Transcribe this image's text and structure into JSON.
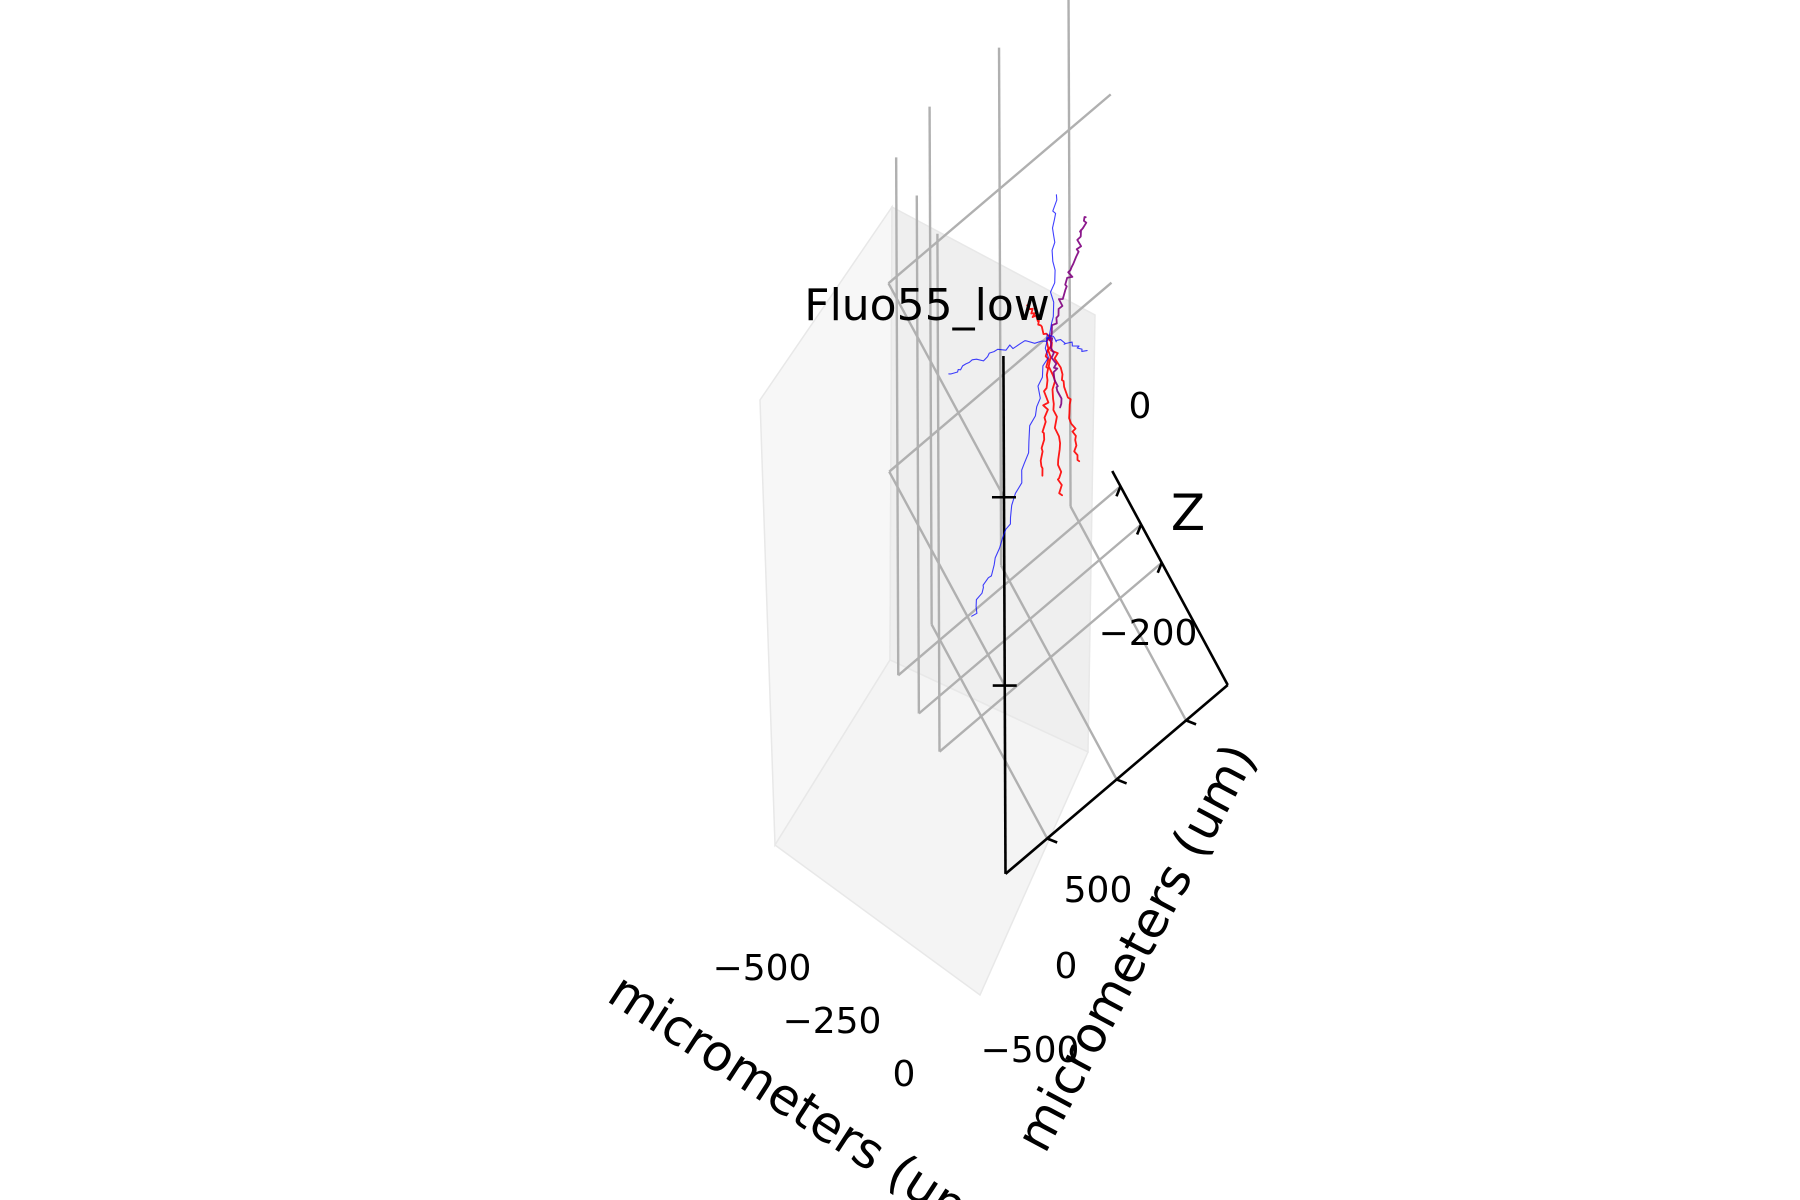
{
  "chart_data": {
    "type": "line3d",
    "title": "Fluo55_low",
    "xlabel": "micrometers (um)",
    "ylabel": "micrometers (um)",
    "zlabel": "Z",
    "x_ticks": [
      "−500",
      "−250",
      "0"
    ],
    "y_ticks": [
      "500",
      "0",
      "−500"
    ],
    "z_ticks": [
      "0",
      "−200"
    ],
    "grid": true,
    "colors": {
      "dendrite": "#ff0000",
      "axon": "#0000ff",
      "apical": "#800080"
    },
    "series": [
      {
        "color": "#ff0000",
        "points": [
          [
            0,
            0,
            -60
          ],
          [
            -20,
            10,
            -110
          ],
          [
            -30,
            20,
            -160
          ],
          [
            -40,
            30,
            -210
          ]
        ]
      },
      {
        "color": "#ff0000",
        "points": [
          [
            0,
            0,
            -60
          ],
          [
            30,
            -10,
            -120
          ],
          [
            60,
            -30,
            -180
          ],
          [
            80,
            -40,
            -220
          ]
        ]
      },
      {
        "color": "#ff0000",
        "points": [
          [
            0,
            0,
            -60
          ],
          [
            60,
            -80,
            -110
          ],
          [
            90,
            -120,
            -160
          ],
          [
            120,
            -140,
            -190
          ]
        ]
      },
      {
        "color": "#ff0000",
        "points": [
          [
            0,
            0,
            -60
          ],
          [
            -60,
            60,
            -40
          ],
          [
            -100,
            100,
            -30
          ]
        ]
      },
      {
        "color": "#800080",
        "points": [
          [
            0,
            0,
            -60
          ],
          [
            50,
            -60,
            -20
          ],
          [
            80,
            -120,
            10
          ],
          [
            100,
            -170,
            40
          ],
          [
            110,
            -200,
            60
          ]
        ]
      },
      {
        "color": "#800080",
        "points": [
          [
            0,
            0,
            -60
          ],
          [
            40,
            -20,
            -90
          ],
          [
            60,
            -40,
            -130
          ]
        ]
      },
      {
        "color": "#0000ff",
        "points": [
          [
            0,
            0,
            -60
          ],
          [
            -80,
            60,
            -150
          ],
          [
            -180,
            150,
            -250
          ],
          [
            -300,
            250,
            -330
          ],
          [
            -400,
            330,
            -380
          ]
        ]
      },
      {
        "color": "#0000ff",
        "points": [
          [
            0,
            0,
            -60
          ],
          [
            -150,
            200,
            -70
          ],
          [
            -300,
            360,
            -90
          ],
          [
            -430,
            470,
            -110
          ]
        ]
      },
      {
        "color": "#0000ff",
        "points": [
          [
            0,
            0,
            -60
          ],
          [
            60,
            -100,
            -70
          ],
          [
            120,
            -200,
            -80
          ]
        ]
      },
      {
        "color": "#0000ff",
        "points": [
          [
            0,
            0,
            -60
          ],
          [
            -40,
            -60,
            20
          ],
          [
            -60,
            -90,
            70
          ]
        ]
      }
    ]
  }
}
